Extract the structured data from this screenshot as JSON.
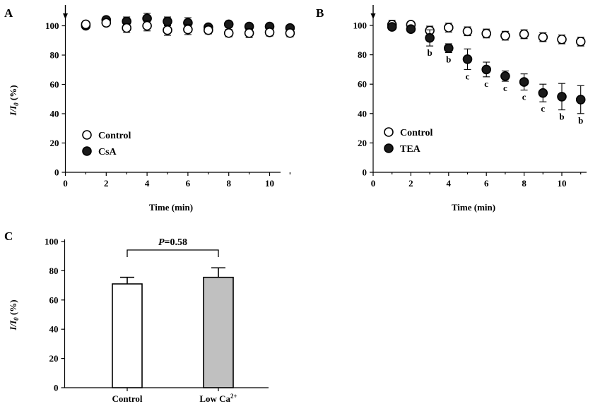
{
  "chart_data": [
    {
      "panel": "A",
      "type": "scatter",
      "xlabel": "Time (min)",
      "ylabel": "I/I0 (%)",
      "ylabel_parts": [
        "I/I",
        "0",
        " (%)"
      ],
      "xlim": [
        0,
        11.5
      ],
      "ylim": [
        0,
        105
      ],
      "x_ticks": [
        0,
        2,
        4,
        6,
        8,
        10
      ],
      "y_ticks": [
        0,
        20,
        40,
        60,
        80,
        100
      ],
      "arrow_at_x": 0,
      "series": [
        {
          "name": "CsA",
          "style": "filled",
          "x": [
            1,
            2,
            3,
            4,
            5,
            6,
            7,
            8,
            9,
            10,
            11
          ],
          "y": [
            100,
            104,
            103,
            105,
            103,
            102,
            99,
            101,
            99.5,
            99.5,
            98.5
          ],
          "err": [
            1.5,
            1.5,
            3,
            3.5,
            3,
            3.5,
            1.5,
            1.5,
            1,
            1,
            1
          ]
        },
        {
          "name": "Control",
          "style": "open",
          "x": [
            1,
            2,
            3,
            4,
            5,
            6,
            7,
            8,
            9,
            10,
            11
          ],
          "y": [
            101,
            102,
            98.5,
            100,
            97,
            97.5,
            97,
            95,
            95,
            95.5,
            95
          ],
          "err": [
            2,
            1.5,
            3,
            3.5,
            3.5,
            3.5,
            2.5,
            2.5,
            3,
            2.5,
            2.5
          ]
        }
      ],
      "legend": [
        "Control",
        "CsA"
      ]
    },
    {
      "panel": "B",
      "type": "scatter",
      "xlabel": "Time (min)",
      "ylabel": "",
      "xlim": [
        0,
        11.5
      ],
      "ylim": [
        0,
        105
      ],
      "x_ticks": [
        0,
        2,
        4,
        6,
        8,
        10
      ],
      "y_ticks": [
        0,
        20,
        40,
        60,
        80,
        100
      ],
      "arrow_at_x": 0,
      "series": [
        {
          "name": "Control",
          "style": "open",
          "x": [
            1,
            2,
            3,
            4,
            5,
            6,
            7,
            8,
            9,
            10,
            11
          ],
          "y": [
            100.5,
            100.5,
            96.5,
            98.5,
            96,
            94.5,
            93,
            94,
            92,
            90.5,
            89
          ],
          "err": [
            3,
            2,
            3,
            3,
            3,
            3,
            3,
            3,
            3,
            3,
            3
          ]
        },
        {
          "name": "TEA",
          "style": "filled",
          "x": [
            1,
            2,
            3,
            4,
            5,
            6,
            7,
            8,
            9,
            10,
            11
          ],
          "y": [
            99,
            97.5,
            91.5,
            84.5,
            77,
            70,
            65.5,
            61.5,
            54,
            51.5,
            49.5
          ],
          "err": [
            2,
            2,
            5.5,
            3,
            7,
            5,
            3.5,
            5.5,
            6,
            9,
            9.5
          ],
          "sig_labels": [
            "",
            "",
            "b",
            "b",
            "c",
            "c",
            "c",
            "c",
            "c",
            "b",
            "b"
          ]
        }
      ],
      "legend": [
        "Control",
        "TEA"
      ]
    },
    {
      "panel": "C",
      "type": "bar",
      "xlabel": "",
      "ylabel": "I/I0 (%)",
      "ylabel_parts": [
        "I/I",
        "0",
        " (%)"
      ],
      "ylim": [
        0,
        100
      ],
      "y_ticks": [
        0,
        20,
        40,
        60,
        80,
        100
      ],
      "categories": [
        "Control",
        "Low Ca2+"
      ],
      "category_parts": [
        [
          "Control",
          ""
        ],
        [
          "Low Ca",
          "2+"
        ]
      ],
      "values": [
        71,
        75.5
      ],
      "err": [
        4.5,
        6.5
      ],
      "bar_colors": [
        "#ffffff",
        "#c0c0c0"
      ],
      "annotation": "P=0.58",
      "annotation_parts": [
        "P",
        "=0.58"
      ]
    }
  ],
  "panel_letters": [
    "A",
    "B",
    "C"
  ]
}
